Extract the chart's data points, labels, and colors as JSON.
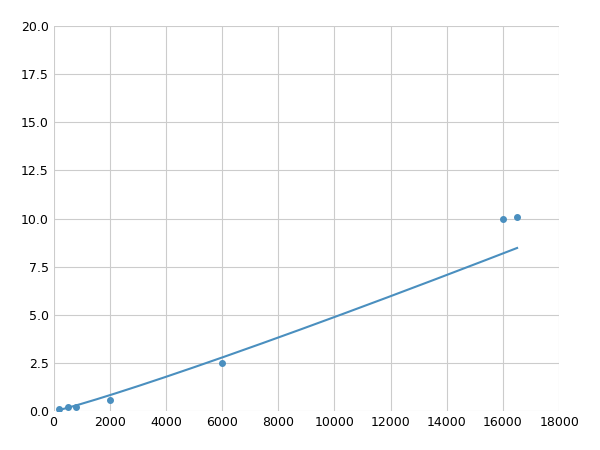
{
  "x": [
    200,
    500,
    800,
    2000,
    6000,
    16000,
    16500
  ],
  "y": [
    0.1,
    0.2,
    0.2,
    0.6,
    2.5,
    10.0,
    10.1
  ],
  "line_color": "#4A8FBF",
  "marker_color": "#4A8FBF",
  "marker_size": 4,
  "xlim": [
    0,
    18000
  ],
  "ylim": [
    0,
    20
  ],
  "xticks": [
    0,
    2000,
    4000,
    6000,
    8000,
    10000,
    12000,
    14000,
    16000,
    18000
  ],
  "yticks": [
    0.0,
    2.5,
    5.0,
    7.5,
    10.0,
    12.5,
    15.0,
    17.5,
    20.0
  ],
  "grid_color": "#cccccc",
  "background_color": "#ffffff",
  "linewidth": 1.5
}
